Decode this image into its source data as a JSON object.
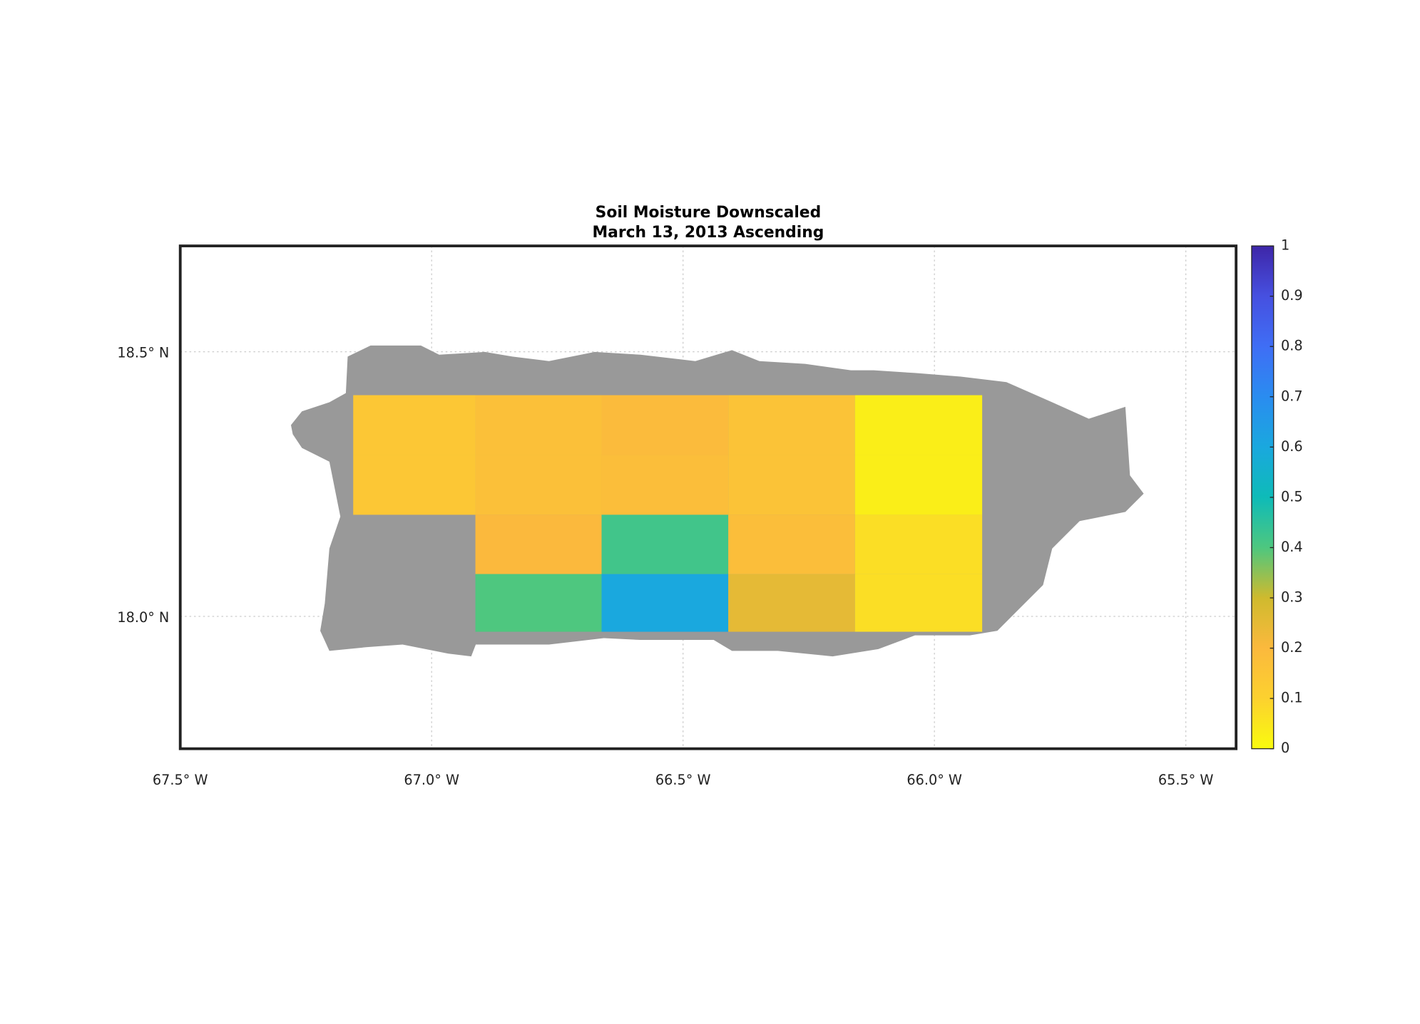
{
  "chart_data": {
    "type": "heatmap",
    "title": "Soil Moisture Downscaled",
    "subtitle": "March 13, 2013 Ascending",
    "xlim": [
      -67.5,
      -65.4
    ],
    "ylim": [
      17.75,
      18.7
    ],
    "xticks": [
      {
        "value": -67.5,
        "label": "67.5° W"
      },
      {
        "value": -67.0,
        "label": "67.0° W"
      },
      {
        "value": -66.5,
        "label": "66.5° W"
      },
      {
        "value": -66.0,
        "label": "66.0° W"
      },
      {
        "value": -65.5,
        "label": "65.5° W"
      }
    ],
    "yticks": [
      {
        "value": 18.0,
        "label": "18.0° N"
      },
      {
        "value": 18.5,
        "label": "18.5° N"
      }
    ],
    "grid": true,
    "x_edges": [
      -67.156,
      -66.913,
      -66.662,
      -66.41,
      -66.158,
      -65.905
    ],
    "y_edges": [
      18.418,
      18.305,
      18.192,
      18.08,
      17.971
    ],
    "values": [
      [
        0.14,
        0.17,
        0.19,
        0.16,
        0.03
      ],
      [
        0.14,
        0.17,
        0.18,
        0.16,
        0.03
      ],
      [
        null,
        0.2,
        0.42,
        0.18,
        0.07
      ],
      [
        null,
        0.4,
        0.6,
        0.25,
        0.07
      ]
    ],
    "clim": [
      0,
      1
    ],
    "cticks": [
      0,
      0.1,
      0.2,
      0.3,
      0.4,
      0.5,
      0.6,
      0.7,
      0.8,
      0.9,
      1
    ],
    "colormap": [
      "#f9fb0e",
      "#fcd12f",
      "#fbb93d",
      "#cfba2e",
      "#4ec77f",
      "#0ebbb8",
      "#1aa8de",
      "#2a8cf0",
      "#3f6ef5",
      "#4650e0",
      "#3e26a8"
    ]
  }
}
